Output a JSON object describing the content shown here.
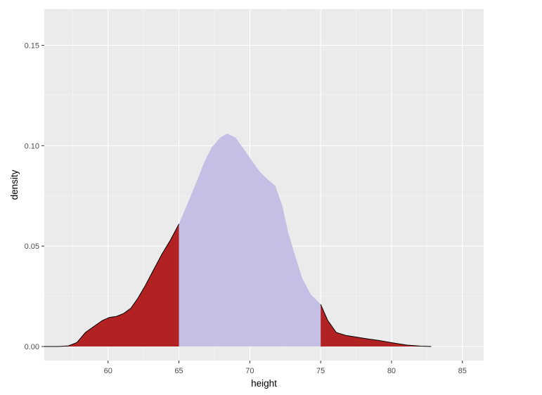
{
  "chart_data": {
    "type": "area",
    "title": "",
    "xlabel": "height",
    "ylabel": "density",
    "xlim": [
      55.5,
      86.5
    ],
    "ylim": [
      -0.007,
      0.168
    ],
    "x_ticks": [
      60,
      65,
      70,
      75,
      80,
      85
    ],
    "x_tick_labels": [
      "60",
      "65",
      "70",
      "75",
      "80",
      "85"
    ],
    "y_ticks": [
      0.0,
      0.05,
      0.1,
      0.15
    ],
    "y_tick_labels": [
      "0.00",
      "0.05",
      "0.10",
      "0.15"
    ],
    "grid": true,
    "legend": "none",
    "shading": {
      "lower_bound": 65,
      "upper_bound": 75,
      "inside_color": "#c5bfe6",
      "outside_color": "#b22222",
      "outline_color": "#000000"
    },
    "x": [
      55.5,
      56.5,
      57.2,
      57.8,
      58.4,
      59.0,
      59.6,
      60.1,
      60.6,
      61.1,
      61.6,
      62.1,
      62.6,
      63.2,
      63.8,
      64.4,
      65.0,
      65.6,
      66.3,
      66.8,
      67.3,
      67.9,
      68.4,
      69.0,
      69.5,
      70.1,
      70.7,
      71.3,
      71.8,
      72.3,
      72.7,
      73.2,
      73.7,
      74.3,
      75.0,
      75.5,
      76.1,
      76.8,
      77.6,
      78.3,
      79.1,
      80.1,
      81.1,
      82.0,
      82.8
    ],
    "y": [
      0.0,
      0.0,
      0.0003,
      0.002,
      0.007,
      0.01,
      0.013,
      0.0145,
      0.015,
      0.0165,
      0.019,
      0.024,
      0.03,
      0.038,
      0.046,
      0.053,
      0.061,
      0.071,
      0.083,
      0.092,
      0.099,
      0.104,
      0.106,
      0.104,
      0.099,
      0.093,
      0.087,
      0.083,
      0.08,
      0.07,
      0.057,
      0.045,
      0.034,
      0.026,
      0.021,
      0.013,
      0.007,
      0.0055,
      0.0046,
      0.0038,
      0.003,
      0.0018,
      0.0007,
      0.0002,
      0.0
    ]
  },
  "colors": {
    "panel_background": "#ebebeb",
    "grid_major": "#ffffff",
    "grid_minor": "#f5f5f5",
    "tick_text": "#4d4d4d"
  }
}
